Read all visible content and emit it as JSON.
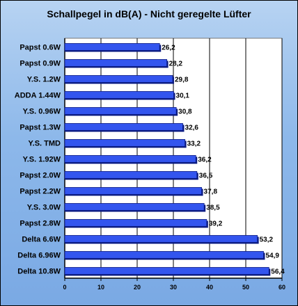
{
  "chart_data": {
    "type": "bar",
    "orientation": "horizontal",
    "title": "Schallpegel in dB(A) - Nicht geregelte Lüfter",
    "xlabel": "",
    "ylabel": "",
    "xlim": [
      0,
      60
    ],
    "xticks": [
      "0",
      "10",
      "20",
      "30",
      "40",
      "50",
      "60"
    ],
    "grid": "vertical",
    "legend": "none",
    "categories": [
      "Papst 0.6W",
      "Papst 0.9W",
      "Y.S. 1.2W",
      "ADDA 1.44W",
      "Y.S. 0.96W",
      "Papst 1.3W",
      "Y.S. TMD",
      "Y.S. 1.92W",
      "Papst 2.0W",
      "Papst 2.2W",
      "Y.S. 3.0W",
      "Papst 2.8W",
      "Delta 6.6W",
      "Delta 6.96W",
      "Delta 10.8W"
    ],
    "values": [
      26.2,
      28.2,
      29.8,
      30.1,
      30.8,
      32.6,
      33.2,
      36.2,
      36.5,
      37.8,
      38.5,
      39.2,
      53.2,
      54.9,
      56.4
    ],
    "value_labels": [
      "26,2",
      "28,2",
      "29,8",
      "30,1",
      "30,8",
      "32,6",
      "33,2",
      "36,2",
      "36,5",
      "37,8",
      "38,5",
      "39,2",
      "53,2",
      "54,9",
      "56,4"
    ],
    "colors": {
      "bar": "#3355ee",
      "bar_edge": "#0a1a80",
      "background_top": "#b7d3f2",
      "background_bottom": "#7aa9e4",
      "plot_area": "#ffffff"
    }
  }
}
